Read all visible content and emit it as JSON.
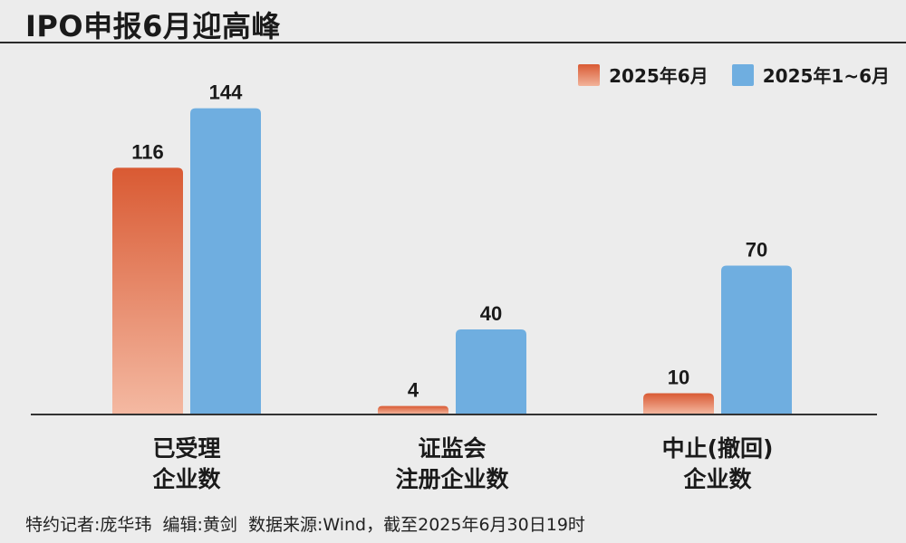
{
  "title": "IPO申报6月迎高峰",
  "legend": {
    "series_a": "2025年6月",
    "series_b": "2025年1~6月"
  },
  "colors": {
    "series_a_top": "#d95a33",
    "series_a_bottom": "#f4b9a2",
    "series_b": "#6faee0",
    "axis": "#333333",
    "background": "#ececec"
  },
  "chart_data": {
    "type": "bar",
    "categories": [
      [
        "已受理",
        "企业数"
      ],
      [
        "证监会",
        "注册企业数"
      ],
      [
        "中止(撤回)",
        "企业数"
      ]
    ],
    "series": [
      {
        "name": "2025年6月",
        "values": [
          116,
          4,
          10
        ]
      },
      {
        "name": "2025年1~6月",
        "values": [
          144,
          40,
          70
        ]
      }
    ],
    "ylim": [
      0,
      160
    ],
    "grid": false,
    "legend_position": "top-right"
  },
  "footer": "特约记者:庞华玮  编辑:黄剑  数据来源:Wind，截至2025年6月30日19时"
}
